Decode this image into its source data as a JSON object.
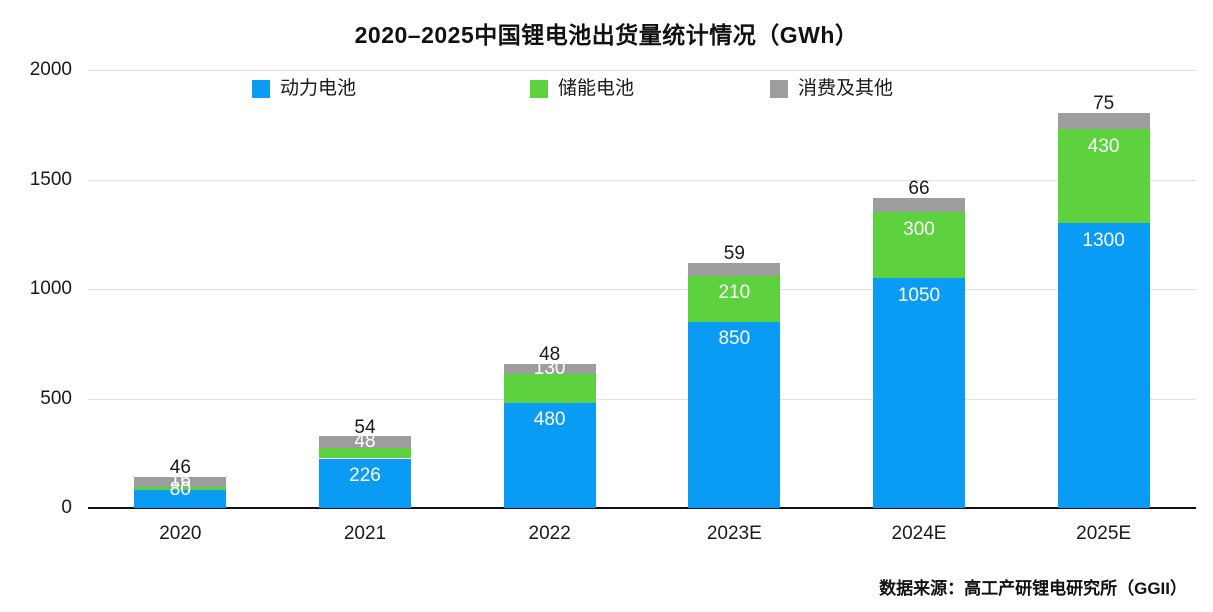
{
  "title": "2020–2025中国锂电池出货量统计情况（GWh）",
  "source": "数据来源：高工产研锂电研究所（GGII）",
  "colors": {
    "power_blue": "#0a9bf5",
    "storage_green": "#5ed13f",
    "consumer_gray": "#9d9d9d",
    "gridline": "#e0e0e0",
    "axis": "#111111",
    "text": "#1a1a1a"
  },
  "chart_data": {
    "type": "bar",
    "stacked": true,
    "title": "2020–2025中国锂电池出货量统计情况（GWh）",
    "categories": [
      "2020",
      "2021",
      "2022",
      "2023E",
      "2024E",
      "2025E"
    ],
    "series": [
      {
        "name": "动力电池",
        "color": "#0a9bf5",
        "values": [
          80,
          226,
          480,
          850,
          1050,
          1300
        ]
      },
      {
        "name": "储能电池",
        "color": "#5ed13f",
        "values": [
          16,
          48,
          130,
          210,
          300,
          430
        ]
      },
      {
        "name": "消费及其他",
        "color": "#9d9d9d",
        "values": [
          46,
          54,
          48,
          59,
          66,
          75
        ]
      }
    ],
    "totals": [
      142,
      328,
      658,
      1119,
      1416,
      1805
    ],
    "xlabel": "",
    "ylabel": "",
    "yticks": [
      0,
      500,
      1000,
      1500,
      2000
    ],
    "ylim": [
      0,
      2000
    ],
    "grid": true,
    "legend_position": "top"
  }
}
